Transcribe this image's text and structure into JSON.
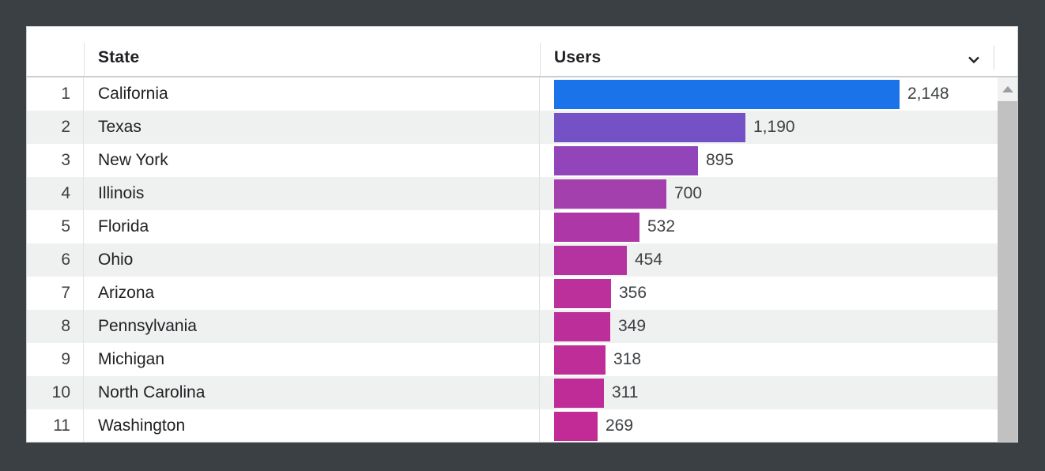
{
  "window": {
    "background": "#3b4045",
    "card_background": "#ffffff"
  },
  "table": {
    "header": {
      "state_label": "State",
      "users_label": "Users",
      "sort_icon": "chevron-down-icon"
    },
    "max_value": 2148,
    "rows": [
      {
        "rank": "1",
        "state": "California",
        "users": "2,148",
        "value": 2148,
        "bar_color": "#1a73e8"
      },
      {
        "rank": "2",
        "state": "Texas",
        "users": "1,190",
        "value": 1190,
        "bar_color": "#7452c6"
      },
      {
        "rank": "3",
        "state": "New York",
        "users": "895",
        "value": 895,
        "bar_color": "#9145b8"
      },
      {
        "rank": "4",
        "state": "Illinois",
        "users": "700",
        "value": 700,
        "bar_color": "#a43fae"
      },
      {
        "rank": "5",
        "state": "Florida",
        "users": "532",
        "value": 532,
        "bar_color": "#ad37a6"
      },
      {
        "rank": "6",
        "state": "Ohio",
        "users": "454",
        "value": 454,
        "bar_color": "#b433a1"
      },
      {
        "rank": "7",
        "state": "Arizona",
        "users": "356",
        "value": 356,
        "bar_color": "#bb309b"
      },
      {
        "rank": "8",
        "state": "Pennsylvania",
        "users": "349",
        "value": 349,
        "bar_color": "#bc2f9a"
      },
      {
        "rank": "9",
        "state": "Michigan",
        "users": "318",
        "value": 318,
        "bar_color": "#be2d98"
      },
      {
        "rank": "10",
        "state": "North Carolina",
        "users": "311",
        "value": 311,
        "bar_color": "#c02c97"
      },
      {
        "rank": "11",
        "state": "Washington",
        "users": "269",
        "value": 269,
        "bar_color": "#c22a95"
      }
    ]
  },
  "scrollbar": {
    "up_icon": "triangle-up-icon",
    "track_color": "#f1f1f1",
    "thumb_color": "#c1c1c1"
  },
  "chart_data": {
    "type": "bar",
    "orientation": "horizontal",
    "title": "",
    "xlabel": "Users",
    "ylabel": "State",
    "xlim": [
      0,
      2148
    ],
    "grid": false,
    "categories": [
      "California",
      "Texas",
      "New York",
      "Illinois",
      "Florida",
      "Ohio",
      "Arizona",
      "Pennsylvania",
      "Michigan",
      "North Carolina",
      "Washington"
    ],
    "values": [
      2148,
      1190,
      895,
      700,
      532,
      454,
      356,
      349,
      318,
      311,
      269
    ],
    "value_labels": [
      "2,148",
      "1,190",
      "895",
      "700",
      "532",
      "454",
      "356",
      "349",
      "318",
      "311",
      "269"
    ],
    "bar_colors": [
      "#1a73e8",
      "#7452c6",
      "#9145b8",
      "#a43fae",
      "#ad37a6",
      "#b433a1",
      "#bb309b",
      "#bc2f9a",
      "#be2d98",
      "#c02c97",
      "#c22a95"
    ]
  }
}
